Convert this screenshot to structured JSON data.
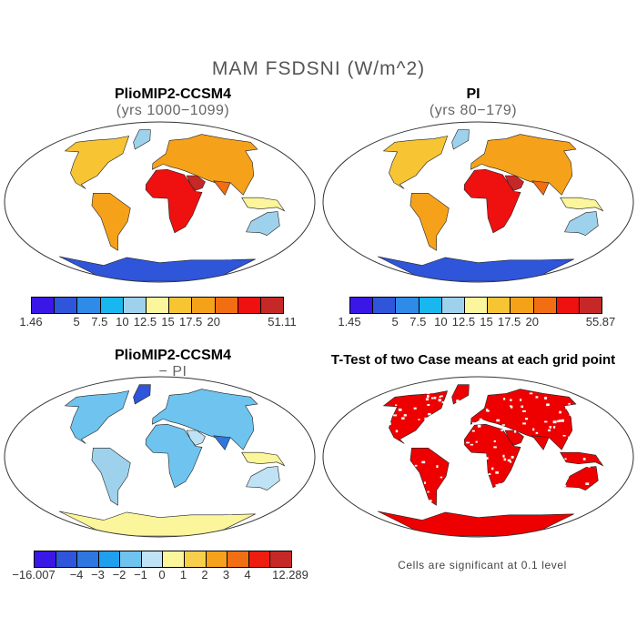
{
  "figure": {
    "title": "MAM FSDSNI (W/m^2)"
  },
  "panels": [
    {
      "id": "pliomip",
      "title": "PlioMIP2-CCSM4",
      "subtitle": "(yrs 1000−1099)",
      "colorbar": {
        "colors": [
          "#3a17e6",
          "#2f55da",
          "#2e8be8",
          "#19b7ef",
          "#9ed2ec",
          "#fbf59b",
          "#f7c534",
          "#f5a21a",
          "#f26e12",
          "#ef1010",
          "#c62828"
        ],
        "labels": [
          "1.46",
          "5",
          "7.5",
          "10",
          "12.5",
          "15",
          "17.5",
          "20",
          "51.11"
        ]
      }
    },
    {
      "id": "pi",
      "title": "PI",
      "subtitle": "(yrs 80−179)",
      "colorbar": {
        "colors": [
          "#3a17e6",
          "#2f55da",
          "#2e8be8",
          "#19b7ef",
          "#9ed2ec",
          "#fbf59b",
          "#f7c534",
          "#f5a21a",
          "#f26e12",
          "#ef1010",
          "#c62828"
        ],
        "labels": [
          "1.45",
          "5",
          "7.5",
          "10",
          "12.5",
          "15",
          "17.5",
          "20",
          "55.87"
        ]
      }
    },
    {
      "id": "diff",
      "title": "PlioMIP2-CCSM4",
      "subtitle": "− PI",
      "colorbar": {
        "colors": [
          "#3a17e6",
          "#2f55da",
          "#2e76e0",
          "#1fa0ef",
          "#6ec4ef",
          "#bfe3f4",
          "#fbf59b",
          "#f7cf4a",
          "#f5a21a",
          "#f26e12",
          "#ef1c10",
          "#c62828"
        ],
        "labels": [
          "−16.007",
          "−4",
          "−3",
          "−2",
          "−1",
          "0",
          "1",
          "2",
          "3",
          "4",
          "12.289"
        ]
      }
    },
    {
      "id": "ttest",
      "title": "T-Test of two Case means at each grid point",
      "note": "Cells are significant at 0.1 level"
    }
  ]
}
